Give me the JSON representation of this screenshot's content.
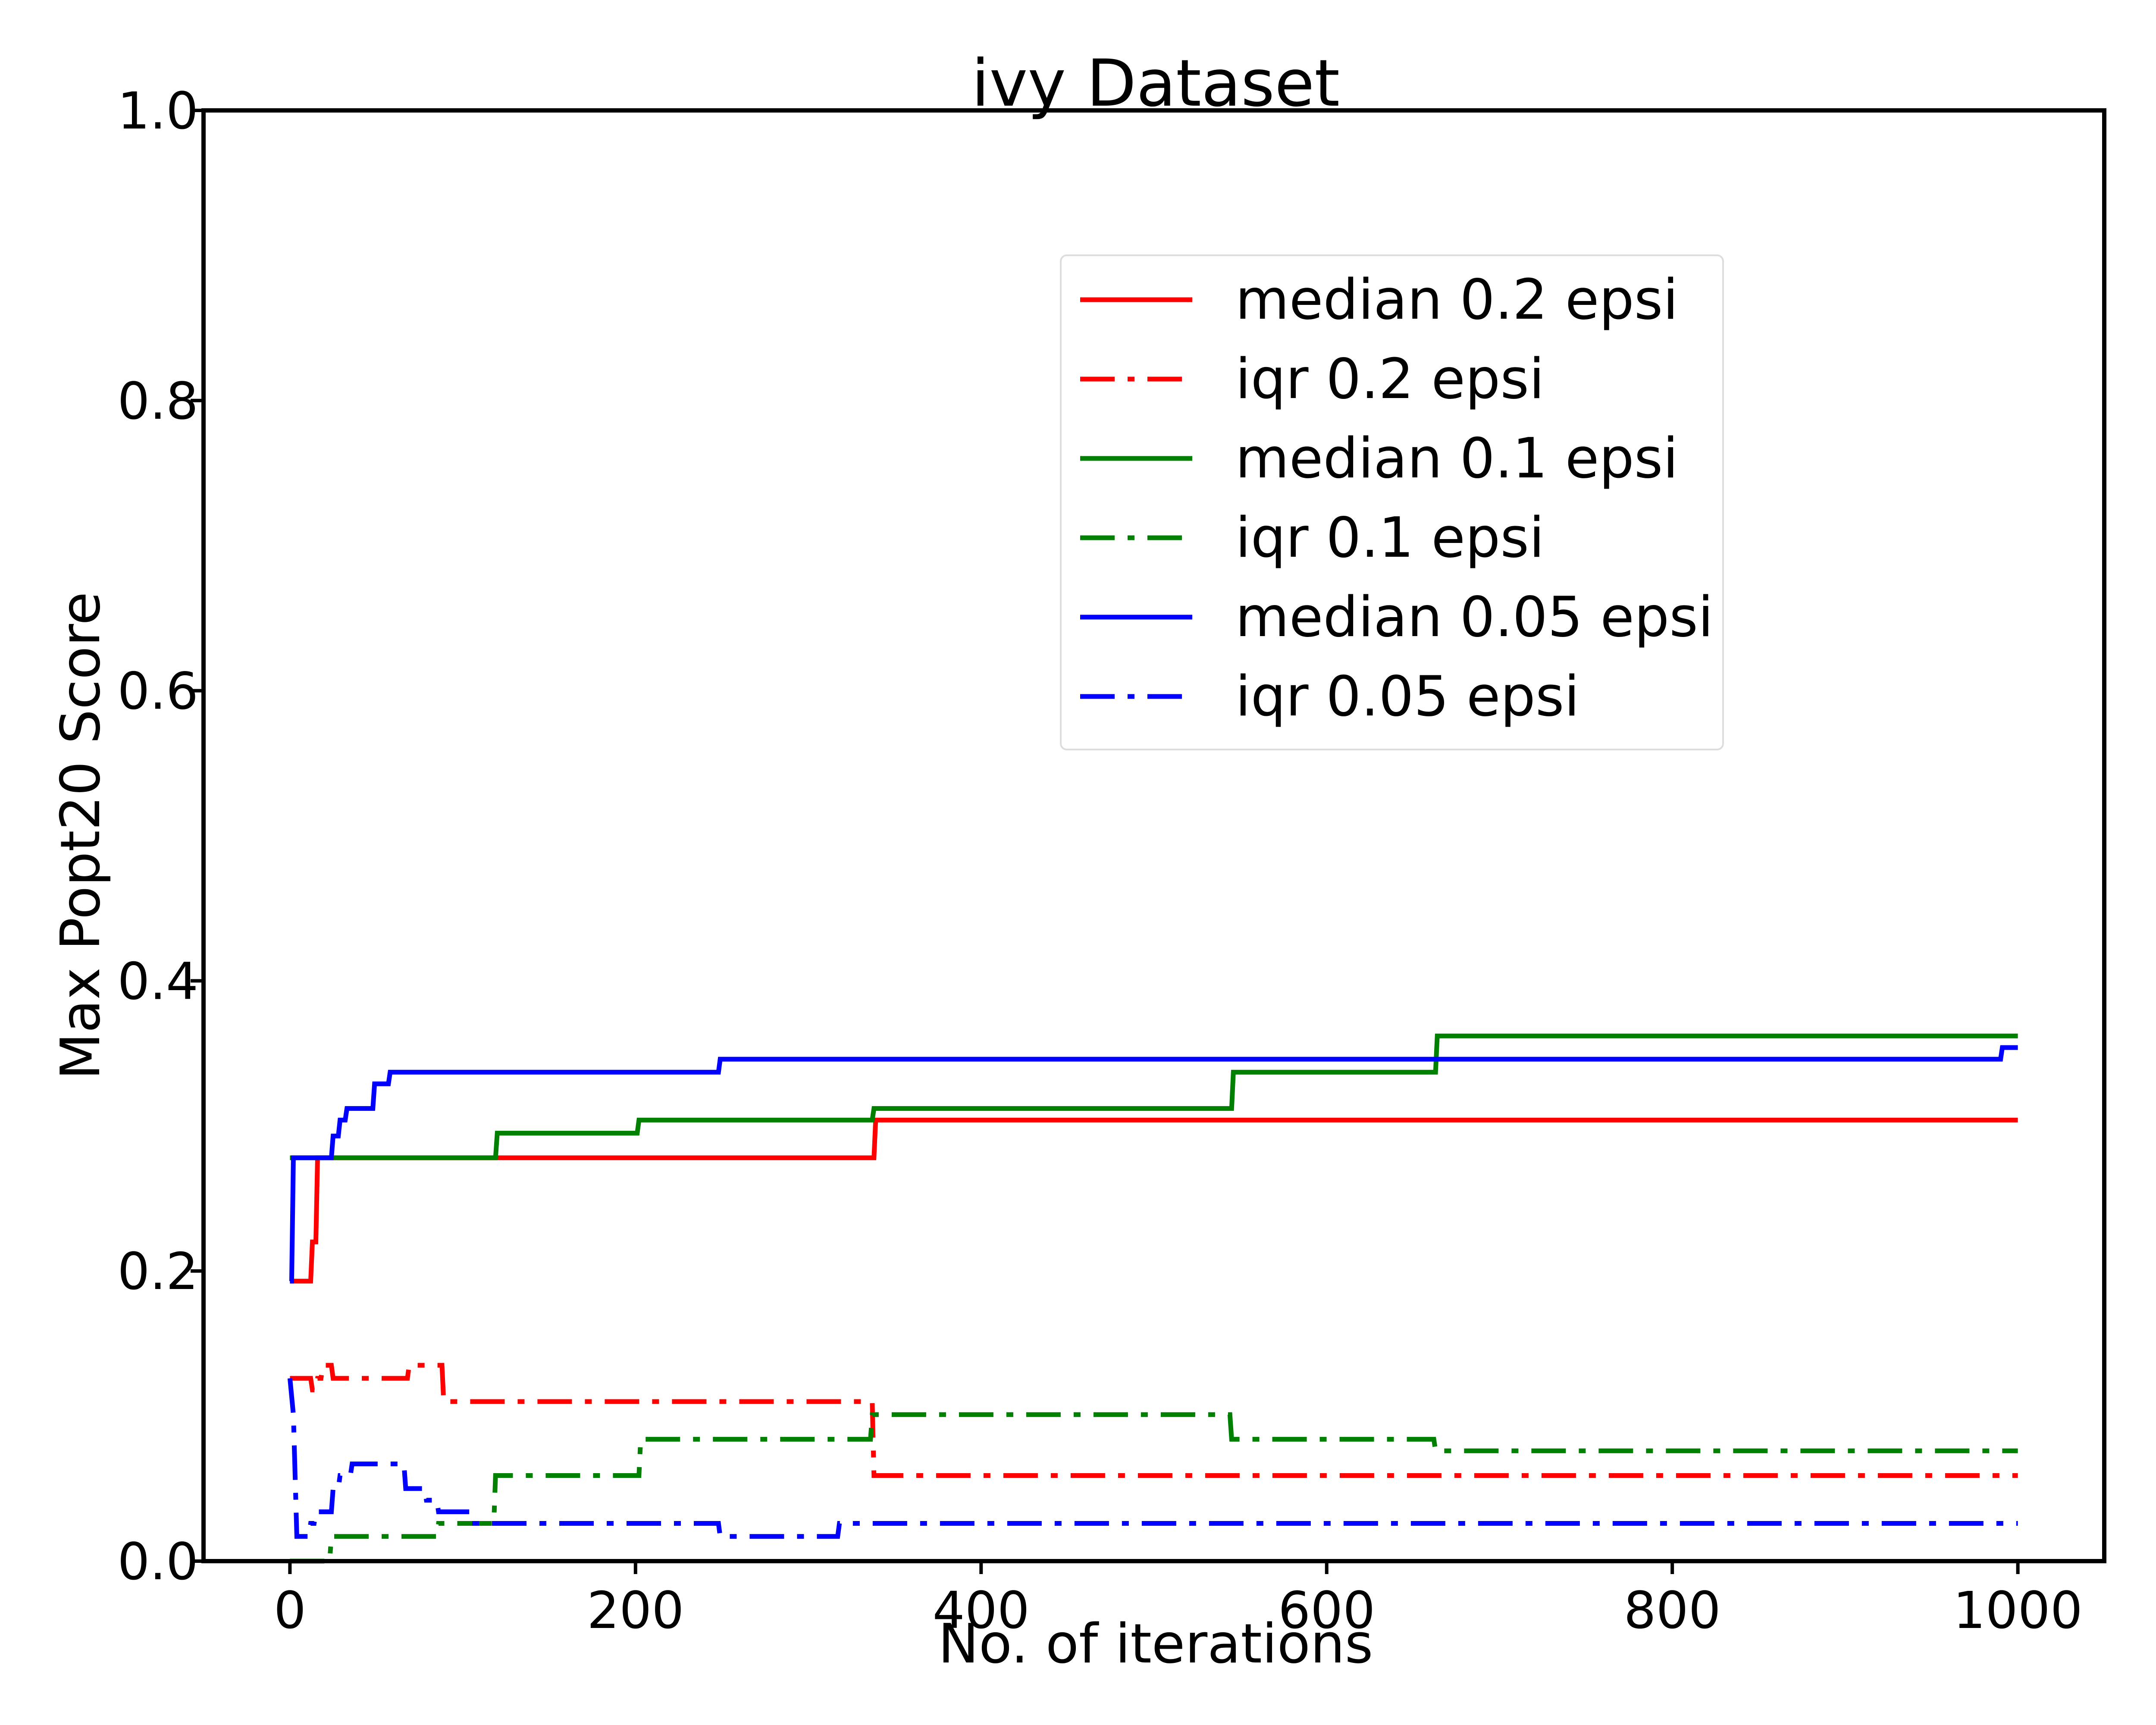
{
  "chart_data": {
    "type": "line",
    "title": "ivy Dataset",
    "xlabel": "No. of iterations",
    "ylabel": "Max Popt20 Score",
    "xlim": [
      -50,
      1050
    ],
    "ylim": [
      0.0,
      1.0
    ],
    "xticks": [
      0,
      200,
      400,
      600,
      800,
      1000
    ],
    "xtick_labels": [
      "0",
      "200",
      "400",
      "600",
      "800",
      "1000"
    ],
    "yticks": [
      0.0,
      0.2,
      0.4,
      0.6,
      0.8,
      1.0
    ],
    "ytick_labels": [
      "0.0",
      "0.2",
      "0.4",
      "0.6",
      "0.8",
      "1.0"
    ],
    "grid": false,
    "legend_position": "upper-right-center",
    "series": [
      {
        "name": "median 0.2 epsi",
        "color": "#ff0000",
        "style": "solid",
        "points": [
          [
            0,
            0.193
          ],
          [
            12,
            0.193
          ],
          [
            13,
            0.22
          ],
          [
            15,
            0.22
          ],
          [
            16,
            0.278
          ],
          [
            338,
            0.278
          ],
          [
            339,
            0.304
          ],
          [
            1000,
            0.304
          ]
        ]
      },
      {
        "name": "iqr 0.2 epsi",
        "color": "#ff0000",
        "style": "dashdot",
        "points": [
          [
            0,
            0.126
          ],
          [
            12,
            0.126
          ],
          [
            13,
            0.118
          ],
          [
            15,
            0.118
          ],
          [
            16,
            0.126
          ],
          [
            18,
            0.126
          ],
          [
            19,
            0.135
          ],
          [
            24,
            0.135
          ],
          [
            25,
            0.126
          ],
          [
            68,
            0.126
          ],
          [
            69,
            0.135
          ],
          [
            88,
            0.135
          ],
          [
            89,
            0.11
          ],
          [
            337,
            0.11
          ],
          [
            338,
            0.059
          ],
          [
            1000,
            0.059
          ]
        ]
      },
      {
        "name": "median 0.1 epsi",
        "color": "#008000",
        "style": "solid",
        "points": [
          [
            0,
            0.278
          ],
          [
            119,
            0.278
          ],
          [
            120,
            0.295
          ],
          [
            201,
            0.295
          ],
          [
            202,
            0.304
          ],
          [
            337,
            0.304
          ],
          [
            338,
            0.312
          ],
          [
            545,
            0.312
          ],
          [
            546,
            0.337
          ],
          [
            663,
            0.337
          ],
          [
            664,
            0.362
          ],
          [
            1000,
            0.362
          ]
        ]
      },
      {
        "name": "iqr 0.1 epsi",
        "color": "#008000",
        "style": "dashdot",
        "points": [
          [
            0,
            0.0
          ],
          [
            23,
            0.0
          ],
          [
            24,
            0.017
          ],
          [
            85,
            0.017
          ],
          [
            86,
            0.026
          ],
          [
            118,
            0.026
          ],
          [
            119,
            0.059
          ],
          [
            202,
            0.059
          ],
          [
            203,
            0.084
          ],
          [
            336,
            0.084
          ],
          [
            337,
            0.101
          ],
          [
            544,
            0.101
          ],
          [
            545,
            0.084
          ],
          [
            662,
            0.084
          ],
          [
            663,
            0.076
          ],
          [
            1000,
            0.076
          ]
        ]
      },
      {
        "name": "median 0.05 epsi",
        "color": "#0000ff",
        "style": "solid",
        "points": [
          [
            0,
            0.193
          ],
          [
            1,
            0.193
          ],
          [
            2,
            0.278
          ],
          [
            24,
            0.278
          ],
          [
            25,
            0.293
          ],
          [
            28,
            0.293
          ],
          [
            29,
            0.304
          ],
          [
            32,
            0.304
          ],
          [
            33,
            0.312
          ],
          [
            48,
            0.312
          ],
          [
            49,
            0.329
          ],
          [
            57,
            0.329
          ],
          [
            58,
            0.337
          ],
          [
            248,
            0.337
          ],
          [
            249,
            0.346
          ],
          [
            990,
            0.346
          ],
          [
            991,
            0.354
          ],
          [
            1000,
            0.354
          ]
        ]
      },
      {
        "name": "iqr 0.05 epsi",
        "color": "#0000ff",
        "style": "dashdot",
        "points": [
          [
            0,
            0.126
          ],
          [
            2,
            0.101
          ],
          [
            4,
            0.017
          ],
          [
            11,
            0.017
          ],
          [
            12,
            0.026
          ],
          [
            14,
            0.026
          ],
          [
            15,
            0.034
          ],
          [
            24,
            0.034
          ],
          [
            25,
            0.05
          ],
          [
            28,
            0.05
          ],
          [
            29,
            0.059
          ],
          [
            35,
            0.059
          ],
          [
            36,
            0.067
          ],
          [
            66,
            0.067
          ],
          [
            67,
            0.05
          ],
          [
            78,
            0.05
          ],
          [
            79,
            0.042
          ],
          [
            85,
            0.042
          ],
          [
            86,
            0.034
          ],
          [
            104,
            0.034
          ],
          [
            105,
            0.026
          ],
          [
            248,
            0.026
          ],
          [
            249,
            0.017
          ],
          [
            317,
            0.017
          ],
          [
            318,
            0.026
          ],
          [
            1000,
            0.026
          ]
        ]
      }
    ]
  }
}
